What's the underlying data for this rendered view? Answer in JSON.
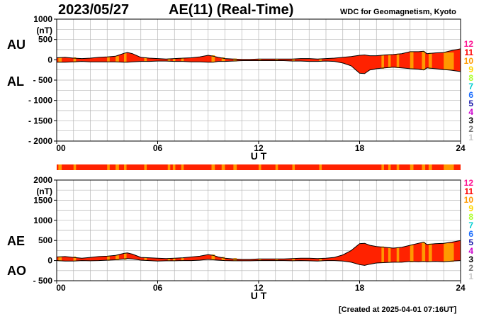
{
  "header": {
    "date": "2023/05/27",
    "title": "AE(11) (Real-Time)",
    "org": "WDC for Geomagnetism, Kyoto"
  },
  "footer": "[Created at 2025-04-01 07:16UT]",
  "colors": {
    "fill_red": "#ff2200",
    "fill_orange": "#ff9900"
  },
  "station_legend": [
    {
      "label": "12",
      "color": "#ff1493"
    },
    {
      "label": "11",
      "color": "#ff0000"
    },
    {
      "label": "10",
      "color": "#ff9900"
    },
    {
      "label": "9",
      "color": "#ffd700"
    },
    {
      "label": "8",
      "color": "#adff2f"
    },
    {
      "label": "7",
      "color": "#00ced1"
    },
    {
      "label": "6",
      "color": "#1e6fff"
    },
    {
      "label": "5",
      "color": "#1a1aaa"
    },
    {
      "label": "4",
      "color": "#cc00cc"
    },
    {
      "label": "3",
      "color": "#000000"
    },
    {
      "label": "2",
      "color": "#777777"
    },
    {
      "label": "1",
      "color": "#c8c8c8"
    }
  ],
  "chart_data": [
    {
      "type": "area",
      "name": "AU/AL",
      "side_labels": [
        "AU",
        "AL"
      ],
      "xlabel": "U T",
      "ylabel_unit": "(nT)",
      "xlim": [
        0,
        24
      ],
      "ylim": [
        -2000,
        1000
      ],
      "xticks": [
        0,
        6,
        12,
        18,
        24
      ],
      "xtick_labels": [
        "00",
        "06",
        "12",
        "18",
        "24"
      ],
      "yticks": [
        1000,
        500,
        0,
        -500,
        -1000,
        -1500,
        -2000
      ],
      "ytick_labels": [
        "1000",
        "500",
        "0",
        "- 500",
        "- 1000",
        "- 1500",
        "- 2000"
      ],
      "grid": true,
      "x": [
        0,
        0.5,
        1,
        1.5,
        2,
        2.5,
        3,
        3.5,
        4,
        4.2,
        4.5,
        5,
        5.5,
        6,
        6.5,
        7,
        7.5,
        8,
        8.5,
        9,
        9.3,
        9.6,
        10,
        10.5,
        11,
        11.5,
        12,
        12.5,
        13,
        13.5,
        14,
        14.5,
        15,
        15.5,
        16,
        16.5,
        17,
        17.5,
        18,
        18.3,
        18.6,
        19,
        19.5,
        20,
        20.5,
        21,
        21.5,
        21.8,
        22,
        22.5,
        23,
        23.5,
        24
      ],
      "upper": [
        50,
        60,
        40,
        30,
        40,
        60,
        70,
        90,
        160,
        180,
        150,
        60,
        40,
        30,
        20,
        30,
        40,
        50,
        70,
        110,
        90,
        60,
        30,
        20,
        10,
        10,
        20,
        20,
        20,
        20,
        20,
        30,
        30,
        20,
        30,
        40,
        60,
        80,
        110,
        120,
        100,
        100,
        120,
        130,
        150,
        200,
        200,
        210,
        150,
        170,
        180,
        230,
        270
      ],
      "lower": [
        -60,
        -60,
        -50,
        -40,
        -50,
        -50,
        -50,
        -50,
        -60,
        -60,
        -50,
        -40,
        -40,
        -30,
        -30,
        -40,
        -40,
        -50,
        -50,
        -60,
        -60,
        -40,
        -40,
        -30,
        -20,
        -20,
        -20,
        -20,
        -20,
        -20,
        -30,
        -30,
        -40,
        -40,
        -30,
        -40,
        -80,
        -150,
        -330,
        -340,
        -250,
        -220,
        -200,
        -180,
        -200,
        -220,
        -230,
        -250,
        -200,
        -220,
        -240,
        -260,
        -290
      ]
    },
    {
      "type": "area",
      "name": "AE/AO",
      "side_labels": [
        "AE",
        "AO"
      ],
      "xlabel": "U T",
      "ylabel_unit": "(nT)",
      "xlim": [
        0,
        24
      ],
      "ylim": [
        -500,
        2000
      ],
      "xticks": [
        0,
        6,
        12,
        18,
        24
      ],
      "xtick_labels": [
        "00",
        "06",
        "12",
        "18",
        "24"
      ],
      "yticks": [
        2000,
        1500,
        1000,
        500,
        0,
        -500
      ],
      "ytick_labels": [
        "2000",
        "1500",
        "1000",
        "500",
        "0",
        "- 500"
      ],
      "grid": true,
      "x": [
        0,
        0.5,
        1,
        1.5,
        2,
        2.5,
        3,
        3.5,
        4,
        4.2,
        4.5,
        5,
        5.5,
        6,
        6.5,
        7,
        7.5,
        8,
        8.5,
        9,
        9.3,
        9.6,
        10,
        10.5,
        11,
        11.5,
        12,
        12.5,
        13,
        13.5,
        14,
        14.5,
        15,
        15.5,
        16,
        16.5,
        17,
        17.5,
        18,
        18.3,
        18.6,
        19,
        19.5,
        20,
        20.5,
        21,
        21.5,
        21.8,
        22,
        22.5,
        23,
        23.5,
        24
      ],
      "upper": [
        90,
        100,
        80,
        60,
        80,
        100,
        110,
        130,
        180,
        190,
        160,
        80,
        70,
        60,
        50,
        60,
        70,
        90,
        110,
        150,
        130,
        90,
        60,
        40,
        30,
        30,
        40,
        40,
        40,
        40,
        50,
        60,
        60,
        50,
        60,
        80,
        140,
        250,
        420,
        430,
        380,
        350,
        330,
        310,
        330,
        380,
        430,
        460,
        400,
        420,
        430,
        460,
        500
      ],
      "lower": [
        0,
        -10,
        -10,
        0,
        -5,
        0,
        10,
        20,
        40,
        50,
        40,
        10,
        0,
        -10,
        -5,
        -5,
        0,
        0,
        10,
        30,
        20,
        10,
        0,
        -5,
        -5,
        -5,
        0,
        0,
        0,
        0,
        -5,
        0,
        -5,
        -10,
        0,
        0,
        -10,
        -40,
        -100,
        -120,
        -90,
        -60,
        -50,
        -40,
        -40,
        -20,
        -30,
        -20,
        -30,
        -20,
        -30,
        -10,
        0
      ]
    }
  ],
  "station_bar": {
    "orange_hours": [
      0.1,
      1.0,
      3.0,
      3.5,
      4.0,
      5.2,
      6.6,
      6.9,
      7.4,
      9.2,
      9.8,
      10.5,
      12.0,
      13.0,
      14.0,
      15.6,
      19.3,
      19.7,
      20.2,
      21.0,
      21.7,
      22.1,
      23.0
    ],
    "orange_widths": [
      0.2,
      0.15,
      0.15,
      0.2,
      0.15,
      0.15,
      0.15,
      0.15,
      0.15,
      0.2,
      0.2,
      0.2,
      0.15,
      0.15,
      0.15,
      0.15,
      0.15,
      0.15,
      0.15,
      0.2,
      0.2,
      0.2,
      0.6
    ]
  }
}
